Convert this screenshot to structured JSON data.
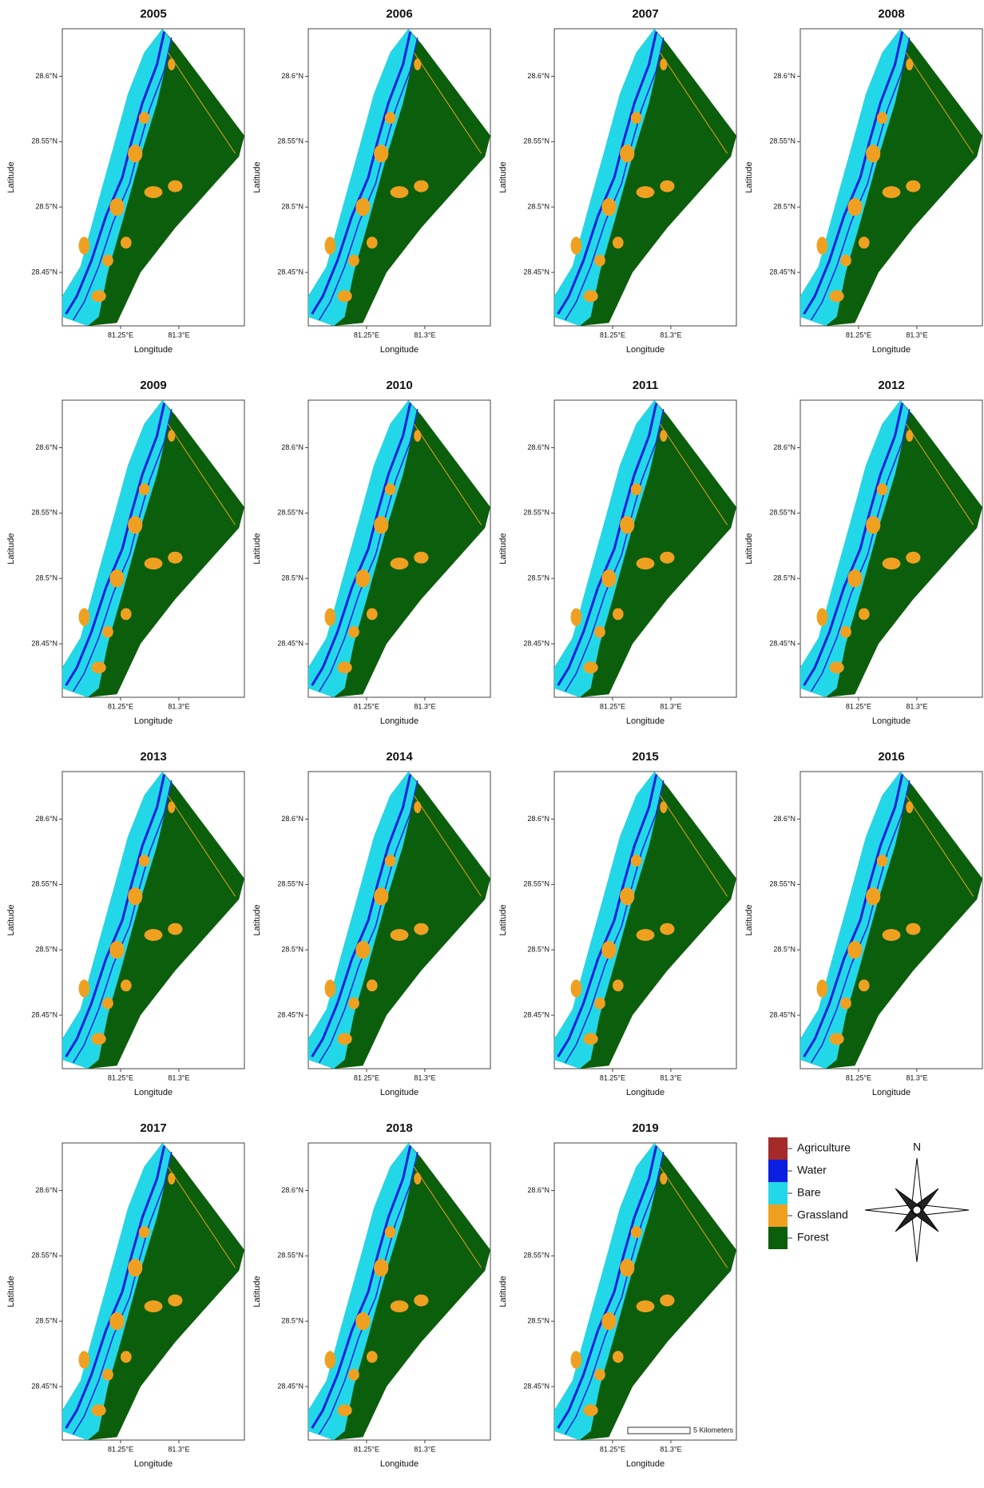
{
  "panels": [
    {
      "title": "2005"
    },
    {
      "title": "2006"
    },
    {
      "title": "2007"
    },
    {
      "title": "2008"
    },
    {
      "title": "2009"
    },
    {
      "title": "2010"
    },
    {
      "title": "2011"
    },
    {
      "title": "2012"
    },
    {
      "title": "2013"
    },
    {
      "title": "2014"
    },
    {
      "title": "2015"
    },
    {
      "title": "2016"
    },
    {
      "title": "2017"
    },
    {
      "title": "2018"
    },
    {
      "title": "2019"
    }
  ],
  "axes": {
    "x_label": "Longitude",
    "y_label": "Latitude",
    "xticks": [
      "81.25°E",
      "81.3°E"
    ],
    "yticks": [
      "28.6°N",
      "28.55°N",
      "28.5°N",
      "28.45°N"
    ]
  },
  "legend": {
    "items": [
      {
        "label": "Agriculture",
        "color": "#a52a2a"
      },
      {
        "label": "Water",
        "color": "#0a1fe0"
      },
      {
        "label": "Bare",
        "color": "#22d8e8"
      },
      {
        "label": "Grassland",
        "color": "#f0a020"
      },
      {
        "label": "Forest",
        "color": "#0b5e0b"
      }
    ]
  },
  "north": "N",
  "scale_bar": "5 Kilometers"
}
